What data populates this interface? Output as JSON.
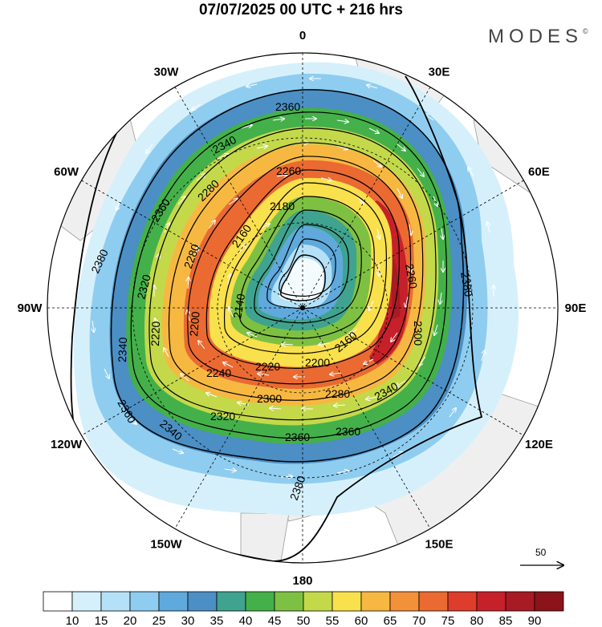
{
  "header": {
    "title": "07/07/2025  00 UTC  + 216 hrs",
    "brand": "MODES"
  },
  "map": {
    "projection": "south-polar-stereographic",
    "longitude_labels": [
      {
        "text": "0",
        "bearing": 0
      },
      {
        "text": "30E",
        "bearing": 30
      },
      {
        "text": "60E",
        "bearing": 60
      },
      {
        "text": "90E",
        "bearing": 90
      },
      {
        "text": "120E",
        "bearing": 120
      },
      {
        "text": "150E",
        "bearing": 150
      },
      {
        "text": "180",
        "bearing": 180
      },
      {
        "text": "150W",
        "bearing": 210
      },
      {
        "text": "120W",
        "bearing": 240
      },
      {
        "text": "90W",
        "bearing": 270
      },
      {
        "text": "60W",
        "bearing": 300
      },
      {
        "text": "30W",
        "bearing": 330
      }
    ],
    "latitude_circles": 3,
    "land_color": "#efefef",
    "wind_speed_levels": [
      10,
      15,
      20,
      25,
      30,
      35,
      40,
      45,
      50,
      55,
      60,
      65,
      70,
      75,
      80,
      85,
      90
    ],
    "colorbar_colors": [
      "#ffffff",
      "#d6f0fb",
      "#b4e1f7",
      "#8fcdf0",
      "#5fa9dc",
      "#4b8fc4",
      "#3fa38f",
      "#44b04a",
      "#7ec142",
      "#c3d94a",
      "#f9e04d",
      "#f7b842",
      "#f2913a",
      "#ea6a32",
      "#dd3d2a",
      "#c6212a",
      "#a81a24",
      "#8a1419"
    ],
    "height_contours": [
      {
        "value": 2140,
        "label": "2140"
      },
      {
        "value": 2160,
        "label": "2160"
      },
      {
        "value": 2180,
        "label": "2180"
      },
      {
        "value": 2200,
        "label": "2200"
      },
      {
        "value": 2220,
        "label": "2220"
      },
      {
        "value": 2240,
        "label": "2240"
      },
      {
        "value": 2260,
        "label": "2260"
      },
      {
        "value": 2280,
        "label": "2280"
      },
      {
        "value": 2300,
        "label": "2300"
      },
      {
        "value": 2320,
        "label": "2320"
      },
      {
        "value": 2340,
        "label": "2340"
      },
      {
        "value": 2360,
        "label": "2360"
      },
      {
        "value": 2380,
        "label": "2380"
      }
    ],
    "contour_labels_visible": [
      "2360",
      "2340",
      "2260",
      "2280",
      "2180",
      "2160",
      "2360",
      "2380",
      "2320",
      "2280",
      "2140",
      "2200",
      "2220",
      "2240",
      "2220",
      "2200",
      "2160",
      "2300",
      "2280",
      "2340",
      "2320",
      "2340",
      "2360",
      "2360",
      "2380",
      "2340",
      "2360",
      "2380",
      "2260",
      "2300"
    ],
    "reference_vector": {
      "label": "50"
    }
  },
  "colorbar": {
    "tick_labels": [
      "10",
      "15",
      "20",
      "25",
      "30",
      "35",
      "40",
      "45",
      "50",
      "55",
      "60",
      "65",
      "70",
      "75",
      "80",
      "85",
      "90"
    ]
  }
}
